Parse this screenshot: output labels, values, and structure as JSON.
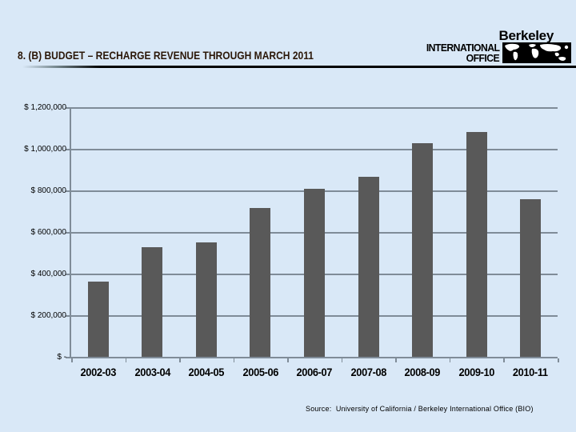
{
  "slide": {
    "title": "8. (B) BUDGET – RECHARGE REVENUE THROUGH MARCH 2011",
    "source": "Source:  University of California / Berkeley International Office (BIO)"
  },
  "logo": {
    "brand": "Berkeley",
    "line1": "INTERNATIONAL",
    "line2": "OFFICE",
    "map_icon": "world-map-icon"
  },
  "colors": {
    "background": "#d9e8f7",
    "bar": "#595959",
    "grid": "#7f8c98",
    "axis": "#7f8c98",
    "title_text": "#2b1708",
    "text": "#000000",
    "logo_map_bg": "#000000",
    "logo_map_land": "#ffffff"
  },
  "chart_data": {
    "type": "bar",
    "title": "",
    "xlabel": "",
    "ylabel": "",
    "categories": [
      "2002-03",
      "2003-04",
      "2004-05",
      "2005-06",
      "2006-07",
      "2007-08",
      "2008-09",
      "2009-10",
      "2010-11"
    ],
    "values": [
      365000,
      530000,
      555000,
      720000,
      810000,
      870000,
      1030000,
      1085000,
      760000
    ],
    "ylim": [
      0,
      1200000
    ],
    "ytick_step": 200000,
    "ytick_labels": [
      "$ -",
      "$ 200,000",
      "$ 400,000",
      "$ 600,000",
      "$ 800,000",
      "$ 1,000,000",
      "$ 1,200,000"
    ],
    "grid": true,
    "legend": false
  }
}
